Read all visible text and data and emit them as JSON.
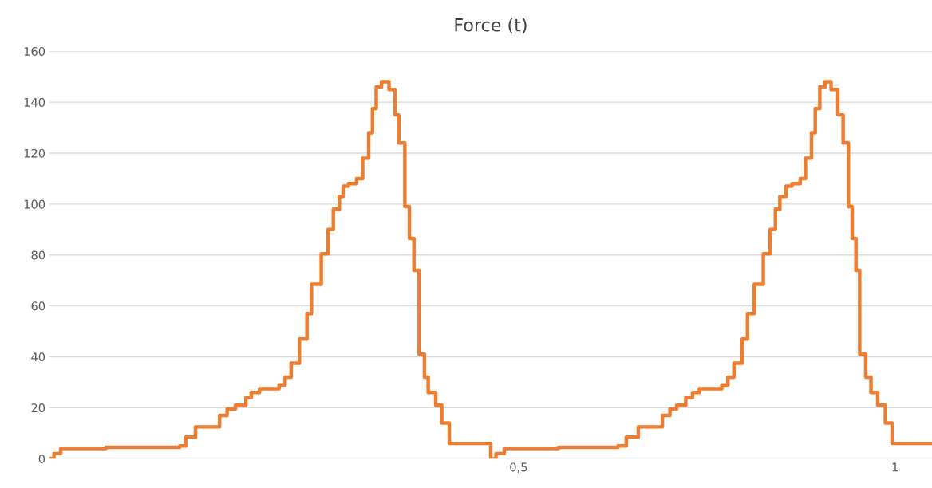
{
  "chart_data": {
    "type": "step",
    "title": "Force (t)",
    "x": [
      -0.123,
      -0.117,
      -0.108,
      -0.048,
      0.05,
      0.058,
      0.071,
      0.103,
      0.113,
      0.124,
      0.138,
      0.145,
      0.156,
      0.182,
      0.19,
      0.198,
      0.209,
      0.219,
      0.225,
      0.238,
      0.247,
      0.254,
      0.262,
      0.267,
      0.274,
      0.285,
      0.293,
      0.301,
      0.306,
      0.311,
      0.318,
      0.328,
      0.336,
      0.341,
      0.349,
      0.355,
      0.361,
      0.368,
      0.375,
      0.38,
      0.39,
      0.398,
      0.408,
      0.463,
      0.47,
      0.481,
      0.553,
      0.632,
      0.643,
      0.659,
      0.691,
      0.701,
      0.71,
      0.722,
      0.731,
      0.74,
      0.77,
      0.778,
      0.786,
      0.797,
      0.804,
      0.813,
      0.825,
      0.834,
      0.841,
      0.847,
      0.855,
      0.863,
      0.874,
      0.881,
      0.889,
      0.894,
      0.9,
      0.907,
      0.915,
      0.924,
      0.931,
      0.938,
      0.943,
      0.948,
      0.953,
      0.961,
      0.968,
      0.977,
      0.987,
      0.996,
      1.049
    ],
    "series": [
      {
        "color": "#ed7d31",
        "values": [
          0,
          2,
          4,
          4.5,
          5,
          8.5,
          12.5,
          17,
          19.5,
          21,
          24,
          26,
          27.5,
          29,
          32,
          37.5,
          47,
          57,
          68.5,
          80.5,
          90,
          98,
          103,
          107,
          108,
          110,
          118,
          128,
          137.5,
          146,
          148,
          145,
          135,
          124,
          99,
          86.5,
          74,
          41,
          32,
          26,
          21,
          14,
          6,
          0,
          2,
          4,
          4.5,
          5,
          8.5,
          12.5,
          17,
          19.5,
          21,
          24,
          26,
          27.5,
          29,
          32,
          37.5,
          47,
          57,
          68.5,
          80.5,
          90,
          98,
          103,
          107,
          108,
          110,
          118,
          128,
          137.5,
          146,
          148,
          145,
          135,
          124,
          99,
          86.5,
          74,
          41,
          32,
          26,
          21,
          14,
          6,
          6
        ]
      }
    ],
    "xlim": [
      -0.123,
      1.049
    ],
    "xticks": [
      {
        "value": 0.5,
        "label": "0,5"
      },
      1
    ],
    "ylim": [
      0,
      160
    ],
    "yticks": [
      0,
      20,
      40,
      60,
      80,
      100,
      120,
      140,
      160
    ],
    "grid": "y",
    "line_style": "solid",
    "marker": "none"
  }
}
